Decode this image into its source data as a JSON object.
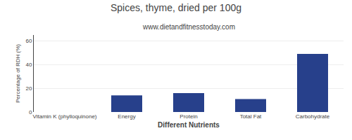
{
  "chart_data": {
    "type": "bar",
    "title": "Spices, thyme, dried per 100g",
    "subtitle": "www.dietandfitnesstoday.com",
    "xlabel": "Different Nutrients",
    "ylabel": "Percentage of RDH (%)",
    "categories": [
      "Vitamin K (phylloquinone)",
      "Energy",
      "Protein",
      "Total Fat",
      "Carbohydrate"
    ],
    "values": [
      0,
      14,
      16,
      11,
      49
    ],
    "color": "#27408B",
    "ylim": [
      0,
      65
    ],
    "yticks": [
      0,
      20,
      40,
      60
    ],
    "grid": true
  }
}
